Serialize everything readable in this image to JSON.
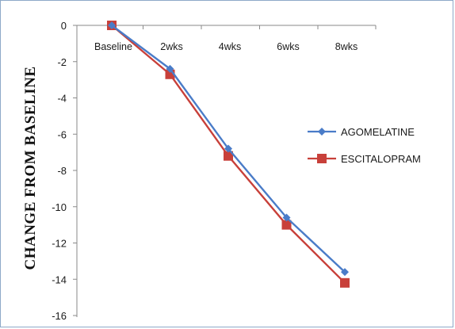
{
  "chart_data": {
    "type": "line",
    "categories": [
      "Baseline",
      "2wks",
      "4wks",
      "6wks",
      "8wks"
    ],
    "series": [
      {
        "name": "AGOMELATINE",
        "values": [
          0,
          -2.4,
          -6.8,
          -10.6,
          -13.6
        ],
        "color": "#4a7cc8",
        "marker": "diamond"
      },
      {
        "name": "ESCITALOPRAM",
        "values": [
          0,
          -2.7,
          -7.2,
          -11.0,
          -14.2
        ],
        "color": "#c8403a",
        "marker": "square"
      }
    ],
    "ylabel": "CHANGE FROM BASELINE",
    "xlabel": "",
    "title": "",
    "ylim": [
      -16,
      0
    ],
    "yticks": [
      "0",
      "-2",
      "-4",
      "-6",
      "-8",
      "-10",
      "-12",
      "-14",
      "-16"
    ],
    "grid": false,
    "legend_position": "right"
  }
}
